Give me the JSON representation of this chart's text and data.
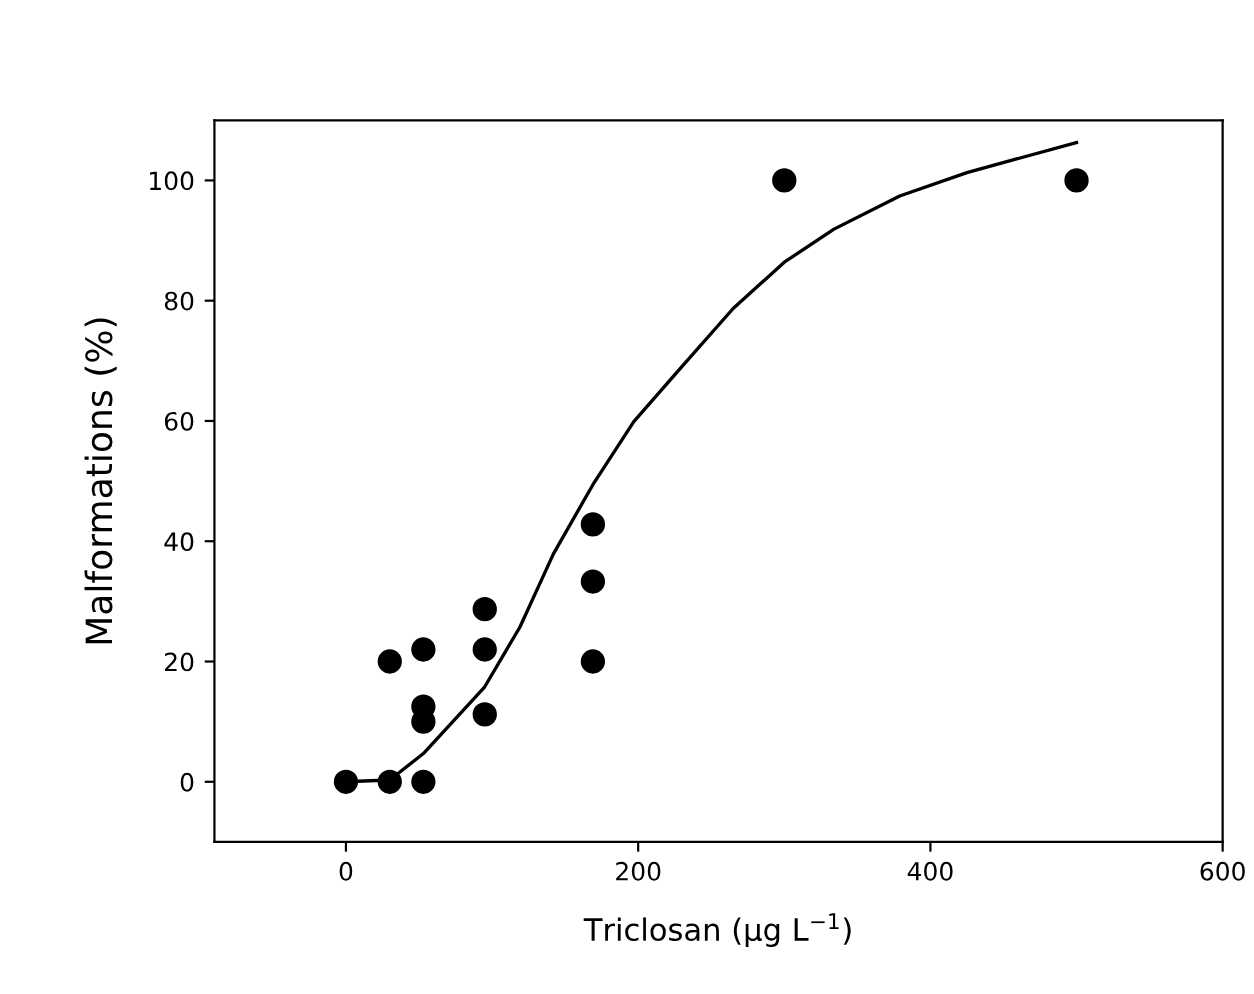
{
  "chart_data": {
    "type": "scatter",
    "xlabel": "Triclosan (µg L$^{−1}$)",
    "ylabel": "Malformations (%)",
    "xlim": [
      -90,
      600
    ],
    "xticks": [
      0,
      200,
      400,
      600
    ],
    "ylim": [
      -10,
      110
    ],
    "yticks": [
      0,
      20,
      40,
      60,
      80,
      100
    ],
    "grid": false,
    "legend": false,
    "marker": "circle",
    "series": [
      {
        "color": "#000000",
        "x": [
          0,
          30,
          30,
          53,
          53,
          53,
          53,
          95,
          95,
          95,
          169,
          169,
          169,
          300,
          500
        ],
        "values": [
          0,
          0,
          20,
          0,
          10,
          12.5,
          22,
          11.2,
          22,
          28.7,
          20,
          33.3,
          42.8,
          100,
          100
        ]
      },
      {
        "type": "line",
        "color": "#000000",
        "line_style": "solid",
        "marker": "none",
        "x": [
          0,
          30,
          53,
          95,
          119,
          142,
          169,
          197,
          229,
          265,
          300,
          334,
          379,
          425,
          500
        ],
        "values": [
          0,
          0.3,
          4.7,
          15.8,
          25.7,
          37.9,
          49.4,
          59.9,
          68.8,
          78.7,
          86.4,
          91.9,
          97.4,
          101.3,
          106.3
        ]
      }
    ]
  }
}
